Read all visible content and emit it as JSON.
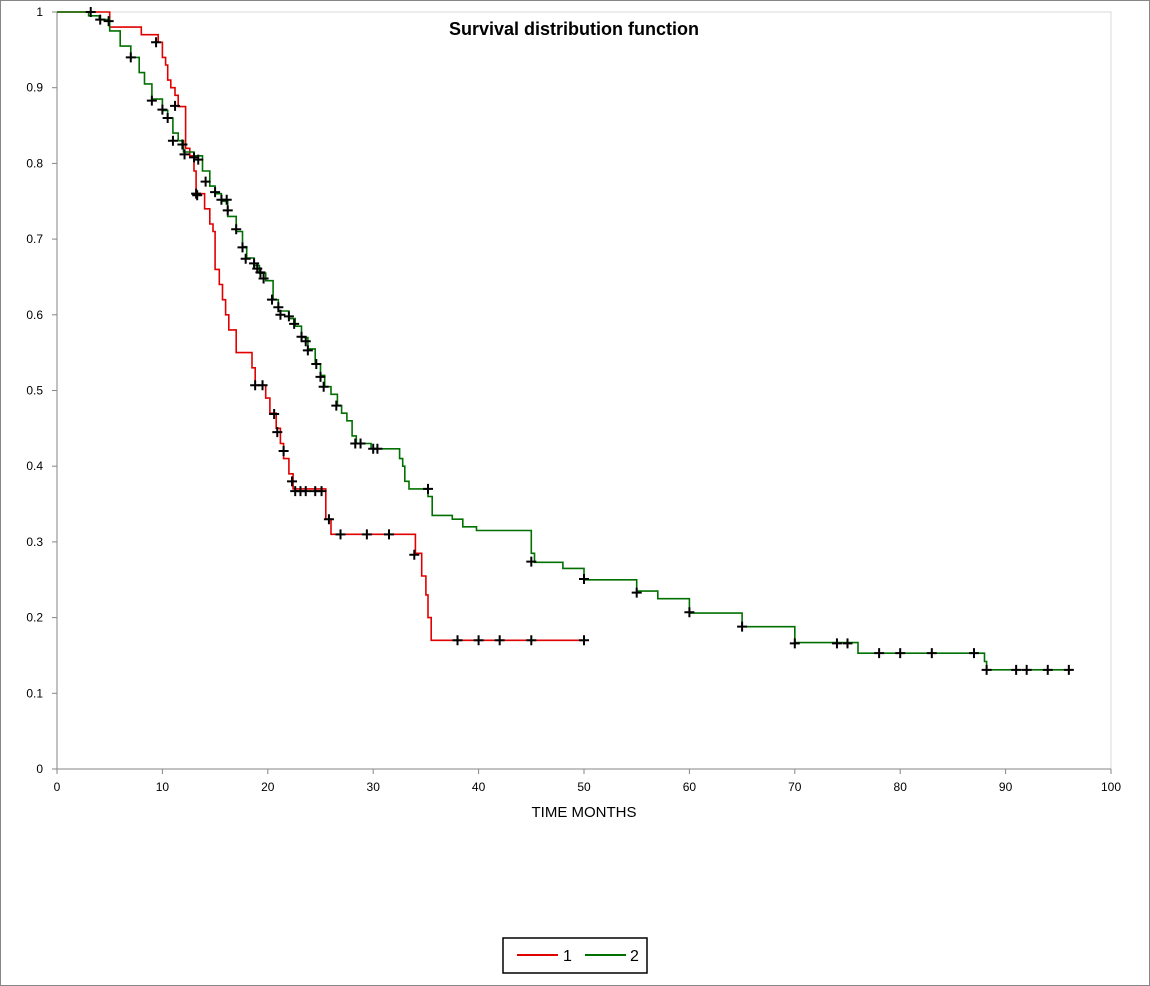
{
  "chart_data": {
    "type": "line",
    "title": "Survival distribution function",
    "xlabel": "TIME MONTHS",
    "ylabel": "",
    "xlim": [
      0,
      100
    ],
    "ylim": [
      0,
      1
    ],
    "xticks": [
      "0",
      "10",
      "20",
      "30",
      "40",
      "50",
      "60",
      "70",
      "80",
      "90",
      "100"
    ],
    "yticks": [
      "0",
      "0.1",
      "0.2",
      "0.3",
      "0.4",
      "0.5",
      "0.6",
      "0.7",
      "0.8",
      "0.9",
      "1"
    ],
    "grid": false,
    "legend": "bottom-center",
    "series": [
      {
        "name": "1",
        "color": "#e00000",
        "steps": [
          [
            0,
            1.0
          ],
          [
            5.0,
            0.98
          ],
          [
            8.0,
            0.97
          ],
          [
            9.6,
            0.96
          ],
          [
            10.0,
            0.94
          ],
          [
            10.3,
            0.93
          ],
          [
            10.5,
            0.91
          ],
          [
            10.8,
            0.9
          ],
          [
            11.2,
            0.89
          ],
          [
            11.5,
            0.875
          ],
          [
            12.2,
            0.82
          ],
          [
            12.6,
            0.81
          ],
          [
            13.0,
            0.79
          ],
          [
            13.2,
            0.76
          ],
          [
            14.0,
            0.74
          ],
          [
            14.5,
            0.72
          ],
          [
            14.8,
            0.71
          ],
          [
            15.0,
            0.66
          ],
          [
            15.4,
            0.64
          ],
          [
            15.7,
            0.62
          ],
          [
            16.0,
            0.6
          ],
          [
            16.3,
            0.58
          ],
          [
            17.0,
            0.55
          ],
          [
            18.5,
            0.53
          ],
          [
            18.8,
            0.507
          ],
          [
            19.8,
            0.49
          ],
          [
            20.2,
            0.47
          ],
          [
            20.8,
            0.45
          ],
          [
            21.2,
            0.43
          ],
          [
            21.5,
            0.41
          ],
          [
            22.0,
            0.39
          ],
          [
            22.4,
            0.37
          ],
          [
            25.5,
            0.33
          ],
          [
            26.0,
            0.31
          ],
          [
            34.0,
            0.285
          ],
          [
            34.6,
            0.255
          ],
          [
            35.0,
            0.23
          ],
          [
            35.2,
            0.2
          ],
          [
            35.5,
            0.17
          ],
          [
            50.0,
            0.17
          ]
        ],
        "censored": [
          [
            9.4,
            0.96
          ],
          [
            13.2,
            0.76
          ],
          [
            18.8,
            0.507
          ],
          [
            19.5,
            0.507
          ],
          [
            20.6,
            0.469
          ],
          [
            20.9,
            0.445
          ],
          [
            21.5,
            0.42
          ],
          [
            22.3,
            0.38
          ],
          [
            22.6,
            0.367
          ],
          [
            23.1,
            0.367
          ],
          [
            23.6,
            0.367
          ],
          [
            24.5,
            0.367
          ],
          [
            25.1,
            0.367
          ],
          [
            25.8,
            0.33
          ],
          [
            26.9,
            0.31
          ],
          [
            29.4,
            0.31
          ],
          [
            31.5,
            0.31
          ],
          [
            33.9,
            0.283
          ],
          [
            38.0,
            0.17
          ],
          [
            40.0,
            0.17
          ],
          [
            42.0,
            0.17
          ],
          [
            45.0,
            0.17
          ],
          [
            50.0,
            0.17
          ]
        ]
      },
      {
        "name": "2",
        "color": "#007000",
        "steps": [
          [
            0,
            1.0
          ],
          [
            3.0,
            0.995
          ],
          [
            4.0,
            0.99
          ],
          [
            5.0,
            0.975
          ],
          [
            6.0,
            0.955
          ],
          [
            7.0,
            0.94
          ],
          [
            7.8,
            0.92
          ],
          [
            8.3,
            0.905
          ],
          [
            9.0,
            0.885
          ],
          [
            10.0,
            0.87
          ],
          [
            10.5,
            0.86
          ],
          [
            11.0,
            0.84
          ],
          [
            11.5,
            0.83
          ],
          [
            12.0,
            0.815
          ],
          [
            13.0,
            0.81
          ],
          [
            13.8,
            0.79
          ],
          [
            14.5,
            0.77
          ],
          [
            15.0,
            0.76
          ],
          [
            15.6,
            0.75
          ],
          [
            16.2,
            0.73
          ],
          [
            17.0,
            0.71
          ],
          [
            17.6,
            0.69
          ],
          [
            18.0,
            0.675
          ],
          [
            18.7,
            0.665
          ],
          [
            19.2,
            0.655
          ],
          [
            19.8,
            0.645
          ],
          [
            20.5,
            0.62
          ],
          [
            21.0,
            0.605
          ],
          [
            22.0,
            0.595
          ],
          [
            22.6,
            0.585
          ],
          [
            23.2,
            0.57
          ],
          [
            23.8,
            0.555
          ],
          [
            24.5,
            0.535
          ],
          [
            25.0,
            0.52
          ],
          [
            25.4,
            0.505
          ],
          [
            26.0,
            0.495
          ],
          [
            26.6,
            0.48
          ],
          [
            27.0,
            0.47
          ],
          [
            27.5,
            0.46
          ],
          [
            28.0,
            0.44
          ],
          [
            28.4,
            0.43
          ],
          [
            29.8,
            0.423
          ],
          [
            32.5,
            0.41
          ],
          [
            32.8,
            0.4
          ],
          [
            33.0,
            0.38
          ],
          [
            33.4,
            0.37
          ],
          [
            35.2,
            0.36
          ],
          [
            35.6,
            0.335
          ],
          [
            37.5,
            0.33
          ],
          [
            38.5,
            0.32
          ],
          [
            39.8,
            0.315
          ],
          [
            45.0,
            0.285
          ],
          [
            45.3,
            0.273
          ],
          [
            48.0,
            0.265
          ],
          [
            50.0,
            0.25
          ],
          [
            55.0,
            0.235
          ],
          [
            57.0,
            0.225
          ],
          [
            60.0,
            0.206
          ],
          [
            65.0,
            0.188
          ],
          [
            70.0,
            0.167
          ],
          [
            76.0,
            0.153
          ],
          [
            88.0,
            0.142
          ],
          [
            88.2,
            0.131
          ],
          [
            96.0,
            0.131
          ]
        ],
        "censored": [
          [
            3.2,
            1.0
          ],
          [
            4.1,
            0.99
          ],
          [
            4.9,
            0.988
          ],
          [
            7.0,
            0.94
          ],
          [
            9.0,
            0.883
          ],
          [
            10.0,
            0.871
          ],
          [
            10.5,
            0.86
          ],
          [
            11.2,
            0.876
          ],
          [
            11.0,
            0.83
          ],
          [
            11.9,
            0.825
          ],
          [
            12.1,
            0.812
          ],
          [
            13.0,
            0.808
          ],
          [
            13.4,
            0.805
          ],
          [
            13.3,
            0.758
          ],
          [
            14.1,
            0.776
          ],
          [
            15.0,
            0.762
          ],
          [
            15.6,
            0.752
          ],
          [
            16.1,
            0.752
          ],
          [
            16.2,
            0.738
          ],
          [
            17.0,
            0.713
          ],
          [
            17.6,
            0.689
          ],
          [
            17.9,
            0.674
          ],
          [
            18.7,
            0.668
          ],
          [
            19.0,
            0.661
          ],
          [
            19.3,
            0.656
          ],
          [
            19.6,
            0.648
          ],
          [
            20.4,
            0.62
          ],
          [
            21.0,
            0.61
          ],
          [
            21.2,
            0.6
          ],
          [
            22.0,
            0.598
          ],
          [
            22.5,
            0.588
          ],
          [
            23.2,
            0.571
          ],
          [
            23.6,
            0.565
          ],
          [
            23.8,
            0.553
          ],
          [
            24.6,
            0.535
          ],
          [
            25.0,
            0.518
          ],
          [
            25.3,
            0.505
          ],
          [
            26.5,
            0.48
          ],
          [
            28.3,
            0.43
          ],
          [
            28.8,
            0.43
          ],
          [
            30.0,
            0.423
          ],
          [
            30.4,
            0.423
          ],
          [
            35.2,
            0.37
          ],
          [
            45.0,
            0.274
          ],
          [
            50.0,
            0.251
          ],
          [
            55.0,
            0.233
          ],
          [
            60.0,
            0.207
          ],
          [
            65.0,
            0.188
          ],
          [
            70.0,
            0.166
          ],
          [
            74.0,
            0.166
          ],
          [
            75.0,
            0.166
          ],
          [
            78.0,
            0.153
          ],
          [
            80.0,
            0.153
          ],
          [
            83.0,
            0.153
          ],
          [
            87.0,
            0.153
          ],
          [
            88.2,
            0.131
          ],
          [
            91.0,
            0.131
          ],
          [
            92.0,
            0.131
          ],
          [
            94.0,
            0.131
          ],
          [
            96.0,
            0.131
          ]
        ]
      }
    ]
  }
}
